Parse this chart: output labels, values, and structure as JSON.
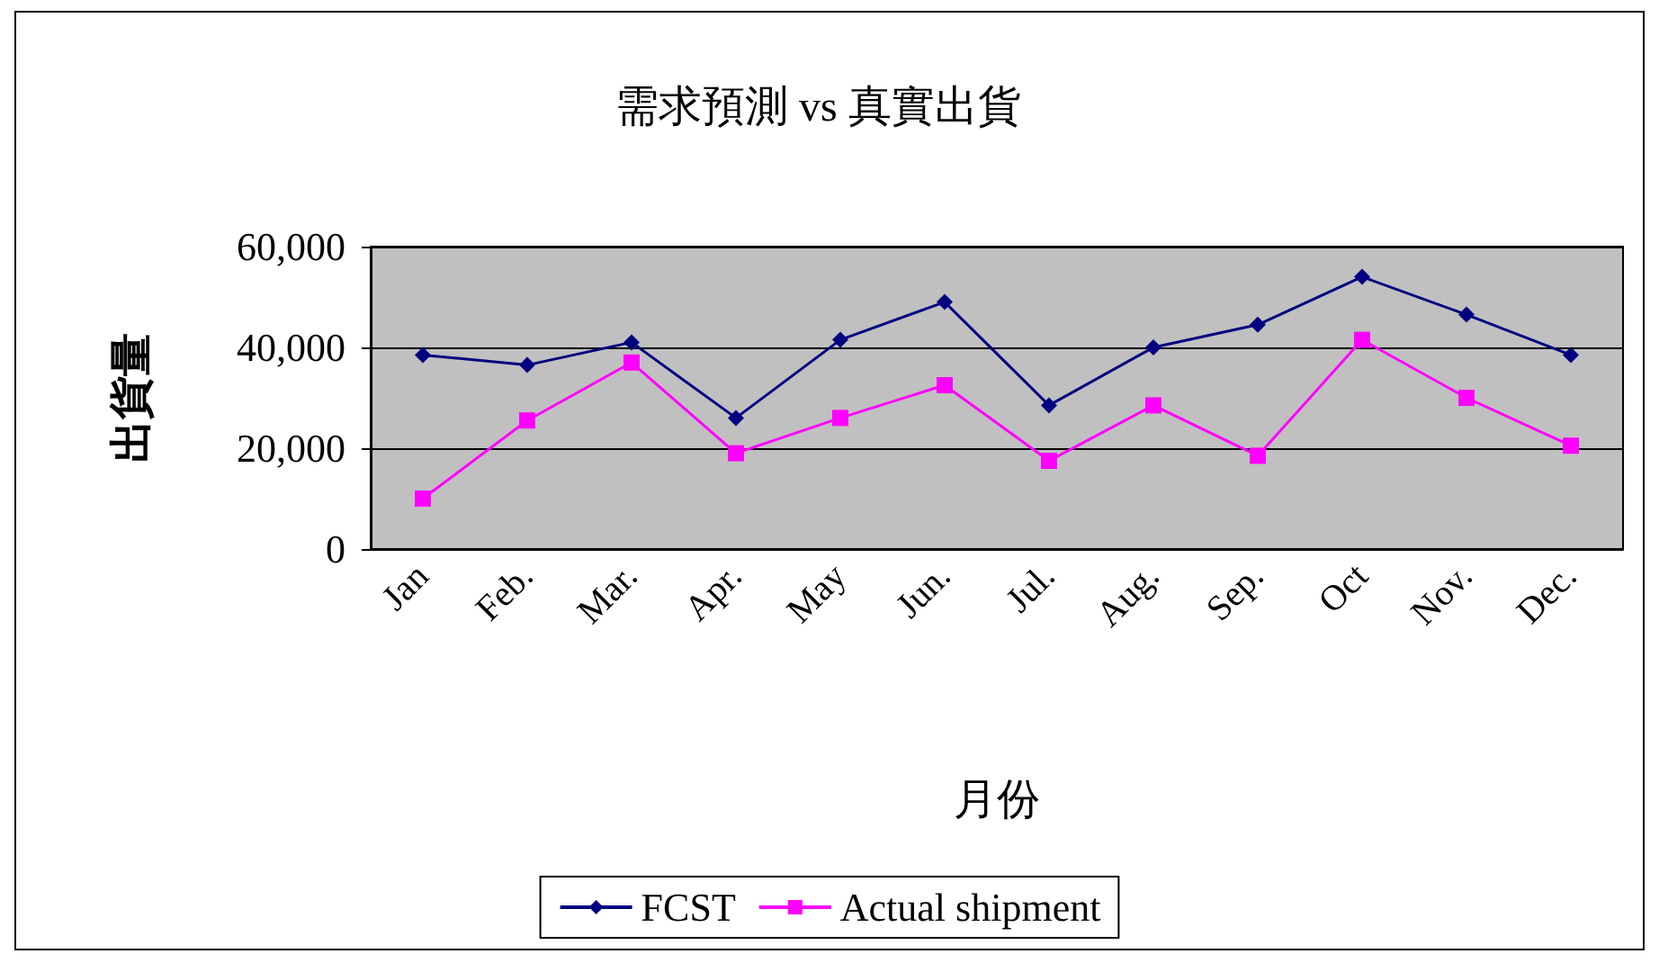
{
  "chart_data": {
    "type": "line",
    "title": "需求預測 vs 真實出貨",
    "xlabel": "月份",
    "ylabel": "出貨量",
    "categories": [
      "Jan",
      "Feb.",
      "Mar.",
      "Apr.",
      "May",
      "Jun.",
      "Jul.",
      "Aug.",
      "Sep.",
      "Oct",
      "Nov.",
      "Dec."
    ],
    "series": [
      {
        "name": "FCST",
        "color": "#000080",
        "marker": "diamond",
        "values": [
          38500,
          36500,
          41000,
          26000,
          41500,
          49000,
          28500,
          40000,
          44500,
          54000,
          46500,
          38500
        ]
      },
      {
        "name": "Actual shipment",
        "color": "#ff00ff",
        "marker": "square",
        "values": [
          10000,
          25500,
          37000,
          19000,
          26000,
          32500,
          17500,
          28500,
          18500,
          41500,
          30000,
          20500
        ]
      }
    ],
    "ylim": [
      0,
      60000
    ],
    "yticks": [
      0,
      {
        "value": 20000,
        "label": "20,000"
      },
      {
        "value": 40000,
        "label": "40,000"
      },
      {
        "value": 60000,
        "label": "60,000"
      }
    ],
    "grid": "y",
    "legend": "bottom",
    "line_style": "solid"
  }
}
